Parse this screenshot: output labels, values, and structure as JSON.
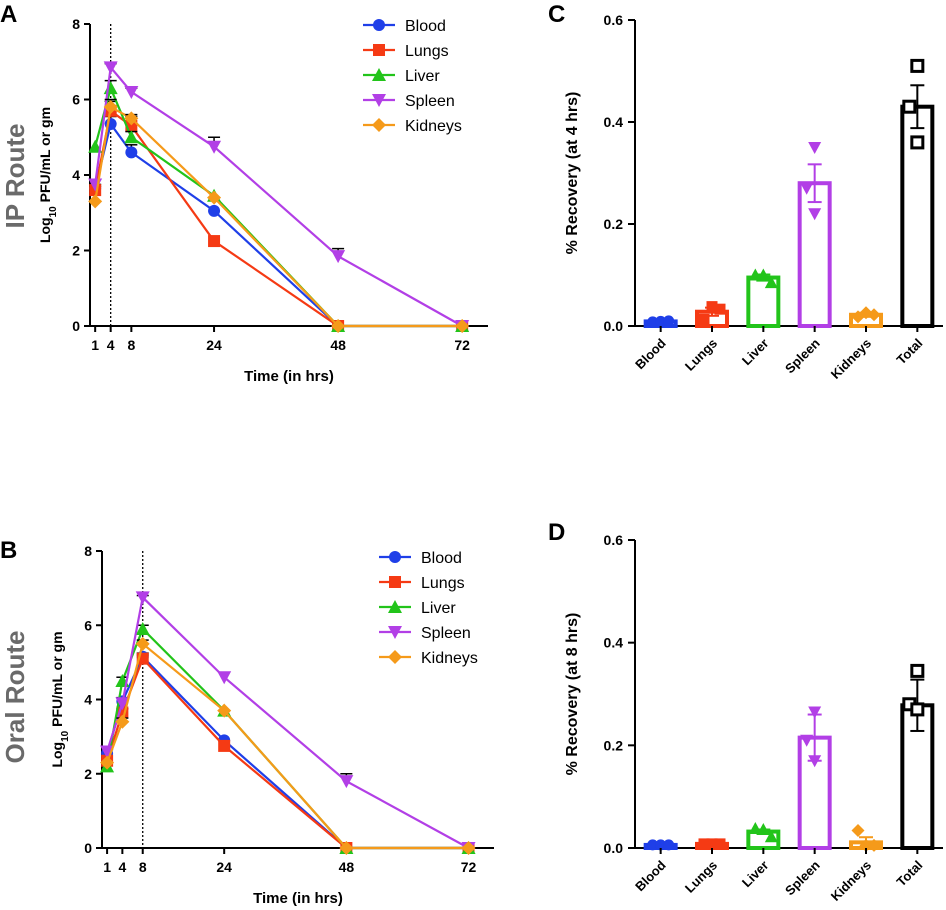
{
  "panel_letters": {
    "a": "A",
    "b": "B",
    "c": "C",
    "d": "D"
  },
  "route_labels": {
    "ip": "IP Route",
    "oral": "Oral Route"
  },
  "colors": {
    "Blood": "#1f3fe8",
    "Lungs": "#f53a14",
    "Liver": "#22c41a",
    "Spleen": "#b23fe6",
    "Kidneys": "#f59a1a",
    "Total": "#000000"
  },
  "chart_data": [
    {
      "id": "A",
      "type": "line",
      "xlabel": "Time (in hrs)",
      "ylabel": "Log10 PFU/mL or gm",
      "ylabel_base": "Log",
      "ylabel_sub": "10",
      "ylabel_rest": " PFU/mL or gm",
      "xticks": [
        1,
        4,
        8,
        24,
        48,
        72
      ],
      "xlim": [
        0,
        77
      ],
      "yticks": [
        0,
        2,
        4,
        6,
        8
      ],
      "ylim": [
        0,
        8
      ],
      "vline_x": 4,
      "legend": [
        "Blood",
        "Lungs",
        "Liver",
        "Spleen",
        "Kidneys"
      ],
      "series": [
        {
          "name": "Blood",
          "marker": "circle",
          "x": [
            1,
            4,
            8,
            24,
            48,
            72
          ],
          "y": [
            3.65,
            5.35,
            4.6,
            3.05,
            0,
            0
          ],
          "err": [
            0.1,
            0.2,
            0.2,
            0,
            0,
            0
          ]
        },
        {
          "name": "Lungs",
          "marker": "square",
          "x": [
            1,
            4,
            8,
            24,
            48,
            72
          ],
          "y": [
            3.6,
            5.7,
            5.3,
            2.25,
            0,
            0
          ],
          "err": [
            0.1,
            0.25,
            0.25,
            0,
            0,
            0
          ]
        },
        {
          "name": "Liver",
          "marker": "triangle-up",
          "x": [
            1,
            4,
            8,
            24,
            48,
            72
          ],
          "y": [
            4.75,
            6.3,
            5.0,
            3.45,
            0,
            0
          ],
          "err": [
            0,
            0.2,
            0.15,
            0,
            0,
            0
          ]
        },
        {
          "name": "Spleen",
          "marker": "triangle-down",
          "x": [
            1,
            4,
            8,
            24,
            48,
            72
          ],
          "y": [
            3.75,
            6.85,
            6.2,
            4.75,
            1.85,
            0
          ],
          "err": [
            0,
            0.1,
            0.1,
            0.25,
            0.2,
            0
          ]
        },
        {
          "name": "Kidneys",
          "marker": "diamond",
          "x": [
            1,
            4,
            8,
            24,
            48,
            72
          ],
          "y": [
            3.3,
            5.8,
            5.5,
            3.4,
            0,
            0
          ],
          "err": [
            0,
            0.2,
            0.1,
            0,
            0,
            0
          ]
        }
      ]
    },
    {
      "id": "B",
      "type": "line",
      "xlabel": "Time (in hrs)",
      "ylabel": "Log10 PFU/mL or gm",
      "ylabel_base": "Log",
      "ylabel_sub": "10",
      "ylabel_rest": " PFU/mL or gm",
      "xticks": [
        1,
        4,
        8,
        24,
        48,
        72
      ],
      "xlim": [
        0,
        77
      ],
      "yticks": [
        0,
        2,
        4,
        6,
        8
      ],
      "ylim": [
        0,
        8
      ],
      "vline_x": 8,
      "legend": [
        "Blood",
        "Lungs",
        "Liver",
        "Spleen",
        "Kidneys"
      ],
      "series": [
        {
          "name": "Blood",
          "marker": "circle",
          "x": [
            1,
            4,
            8,
            24,
            48,
            72
          ],
          "y": [
            2.55,
            3.95,
            5.15,
            2.9,
            0,
            0
          ],
          "err": [
            0.1,
            0.1,
            0.1,
            0,
            0,
            0
          ]
        },
        {
          "name": "Lungs",
          "marker": "square",
          "x": [
            1,
            4,
            8,
            24,
            48,
            72
          ],
          "y": [
            2.35,
            3.65,
            5.1,
            2.75,
            0,
            0
          ],
          "err": [
            0,
            0.1,
            0.1,
            0,
            0,
            0
          ]
        },
        {
          "name": "Liver",
          "marker": "triangle-up",
          "x": [
            1,
            4,
            8,
            24,
            48,
            72
          ],
          "y": [
            2.2,
            4.5,
            5.9,
            3.7,
            0,
            0
          ],
          "err": [
            0,
            0.1,
            0.1,
            0,
            0,
            0
          ]
        },
        {
          "name": "Spleen",
          "marker": "triangle-down",
          "x": [
            1,
            4,
            8,
            24,
            48,
            72
          ],
          "y": [
            2.6,
            3.9,
            6.75,
            4.6,
            1.8,
            0
          ],
          "err": [
            0,
            0,
            0.05,
            0,
            0.2,
            0
          ]
        },
        {
          "name": "Kidneys",
          "marker": "diamond",
          "x": [
            1,
            4,
            8,
            24,
            48,
            72
          ],
          "y": [
            2.3,
            3.4,
            5.5,
            3.7,
            0,
            0
          ],
          "err": [
            0,
            0.1,
            0.1,
            0,
            0,
            0
          ]
        }
      ]
    },
    {
      "id": "C",
      "type": "bar",
      "ylabel": "% Recovery (at 4 hrs)",
      "categories": [
        "Blood",
        "Lungs",
        "Liver",
        "Spleen",
        "Kidneys",
        "Total"
      ],
      "values": [
        0.009,
        0.028,
        0.095,
        0.28,
        0.022,
        0.43
      ],
      "err": [
        0.001,
        0.008,
        0.006,
        0.037,
        0.004,
        0.042
      ],
      "points": [
        [
          0.008,
          0.009,
          0.01
        ],
        [
          0.013,
          0.038,
          0.033
        ],
        [
          0.1,
          0.1,
          0.085
        ],
        [
          0.35,
          0.27,
          0.22
        ],
        [
          0.018,
          0.026,
          0.022
        ],
        [
          0.51,
          0.43,
          0.36
        ]
      ],
      "markers": [
        "circle",
        "square",
        "triangle-up",
        "triangle-down",
        "diamond",
        "square-open"
      ],
      "yticks": [
        0.0,
        0.2,
        0.4,
        0.6
      ],
      "ytick_labels": [
        "0.0",
        "0.2",
        "0.4",
        "0.6"
      ],
      "ylim": [
        0,
        0.6
      ]
    },
    {
      "id": "D",
      "type": "bar",
      "ylabel": "% Recovery (at 8 hrs)",
      "categories": [
        "Blood",
        "Lungs",
        "Liver",
        "Spleen",
        "Kidneys",
        "Total"
      ],
      "values": [
        0.006,
        0.008,
        0.032,
        0.215,
        0.011,
        0.278
      ],
      "err": [
        0.001,
        0.001,
        0.004,
        0.045,
        0.01,
        0.05
      ],
      "points": [
        [
          0.006,
          0.006,
          0.006
        ],
        [
          0.008,
          0.008,
          0.008
        ],
        [
          0.038,
          0.036,
          0.022
        ],
        [
          0.265,
          0.21,
          0.17
        ],
        [
          0.034,
          0.005,
          0.005
        ],
        [
          0.345,
          0.28,
          0.27
        ]
      ],
      "markers": [
        "circle",
        "square",
        "triangle-up",
        "triangle-down",
        "diamond",
        "square-open"
      ],
      "yticks": [
        0.0,
        0.2,
        0.4,
        0.6
      ],
      "ytick_labels": [
        "0.0",
        "0.2",
        "0.4",
        "0.6"
      ],
      "ylim": [
        0,
        0.6
      ]
    }
  ]
}
